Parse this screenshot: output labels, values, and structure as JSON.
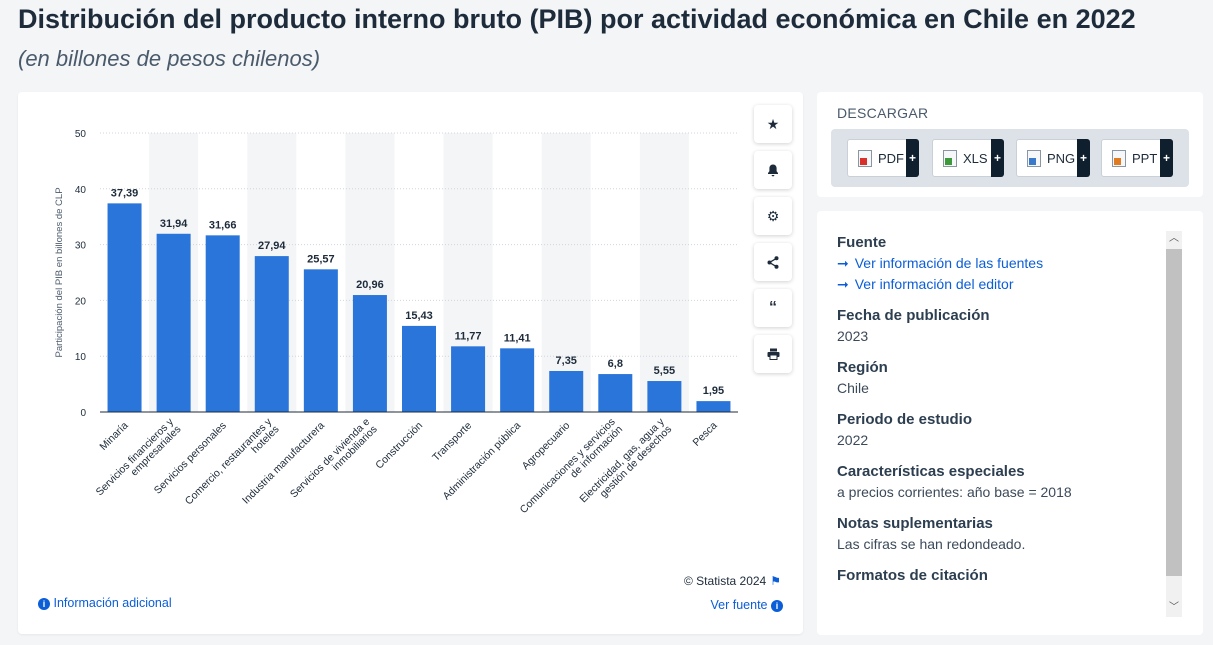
{
  "header": {
    "title": "Distribución del producto interno bruto (PIB) por actividad económica en Chile en 2022",
    "subtitle": "(en billones de pesos chilenos)"
  },
  "chart_data": {
    "type": "bar",
    "categories": [
      "Minaría",
      "Servicios financieros y empresariales",
      "Servicios personales",
      "Comercio, restaurantes y hoteles",
      "Industria manufacturera",
      "Servicios de vivienda e inmobiliarios",
      "Construcción",
      "Transporte",
      "Administración pública",
      "Agropecuario",
      "Comunicaciones y servicios de información",
      "Electricidad, gas, agua y gestión de desechos",
      "Pesca"
    ],
    "values": [
      37.39,
      31.94,
      31.66,
      27.94,
      25.57,
      20.96,
      15.43,
      11.77,
      11.41,
      7.35,
      6.8,
      5.55,
      1.95
    ],
    "value_labels": [
      "37,39",
      "31,94",
      "31,66",
      "27,94",
      "25,57",
      "20,96",
      "15,43",
      "11,77",
      "11,41",
      "7,35",
      "6,8",
      "5,55",
      "1,95"
    ],
    "ylabel": "Participación del PIB en billones de CLP",
    "yticks": [
      "0",
      "10",
      "20",
      "30",
      "40",
      "50"
    ],
    "ylim": [
      0,
      50
    ],
    "bar_color": "#2a75d9",
    "grid": true
  },
  "toolbar": {
    "icons": [
      "star-icon",
      "bell-icon",
      "gear-icon",
      "share-icon",
      "quote-icon",
      "print-icon"
    ]
  },
  "footer": {
    "credit": "© Statista 2024",
    "info_link": "Información adicional",
    "source_link": "Ver fuente"
  },
  "download": {
    "title": "DESCARGAR",
    "buttons": [
      "PDF",
      "XLS",
      "PNG",
      "PPT"
    ]
  },
  "meta": {
    "source_title": "Fuente",
    "source_links": [
      "Ver información de las fuentes",
      "Ver información del editor"
    ],
    "pub_date_title": "Fecha de publicación",
    "pub_date": "2023",
    "region_title": "Región",
    "region": "Chile",
    "period_title": "Periodo de estudio",
    "period": "2022",
    "features_title": "Características especiales",
    "features": "a precios corrientes: año base = 2018",
    "notes_title": "Notas suplementarias",
    "notes": "Las cifras se han redondeado.",
    "citation_title": "Formatos de citación"
  }
}
